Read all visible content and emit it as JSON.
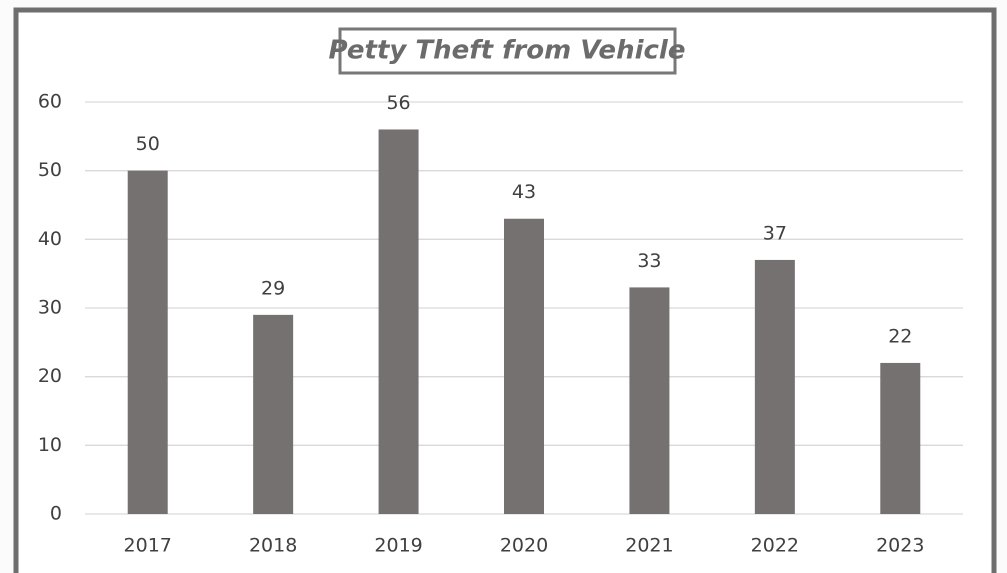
{
  "chart_data": {
    "type": "bar",
    "title": "Petty Theft from Vehicle",
    "categories": [
      "2017",
      "2018",
      "2019",
      "2020",
      "2021",
      "2022",
      "2023"
    ],
    "values": [
      50,
      29,
      56,
      43,
      33,
      37,
      22
    ],
    "color": "#767171",
    "ylim": [
      0,
      60
    ],
    "yticks": [
      0,
      10,
      20,
      30,
      40,
      50,
      60
    ],
    "grid": true
  }
}
